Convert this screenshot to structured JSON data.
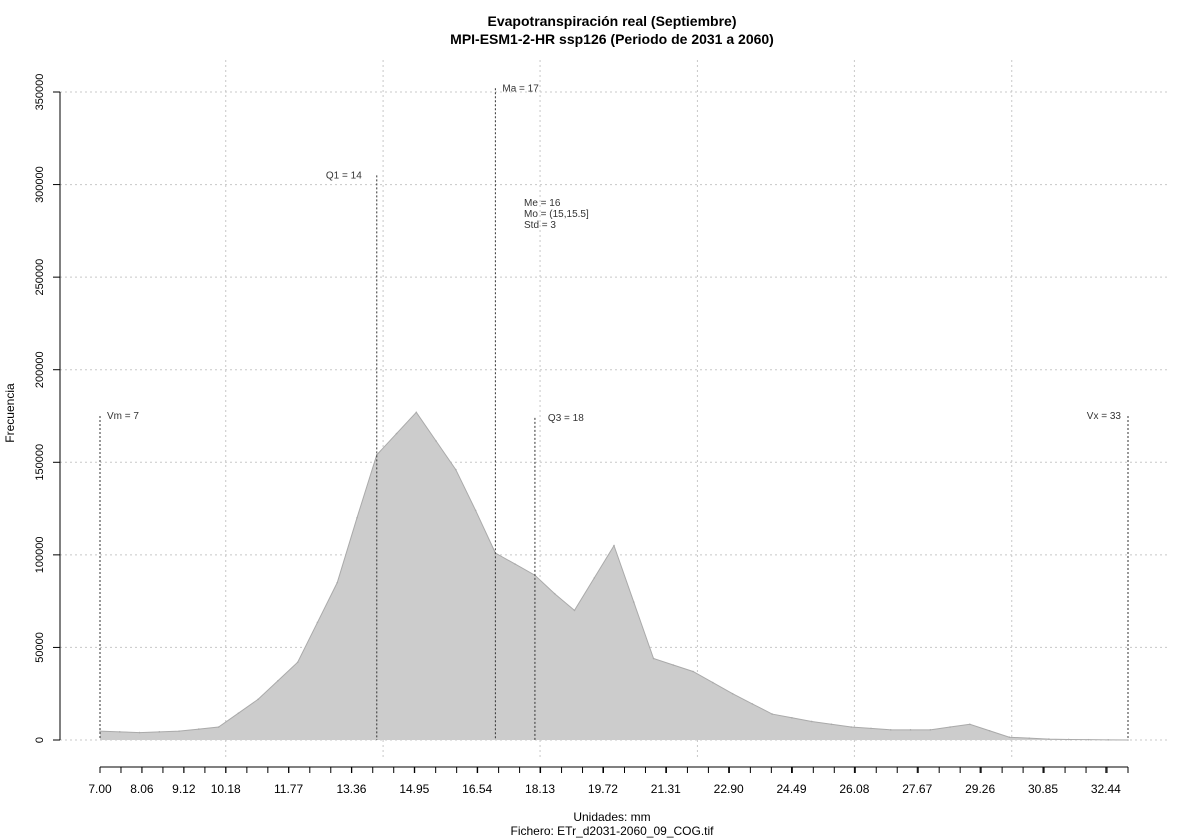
{
  "chart_data": {
    "type": "area",
    "title": "Evapotranspiración real (Septiembre)",
    "subtitle": "MPI-ESM1-2-HR ssp126 (Periodo de 2031 a 2060)",
    "xlabel": "Unidades: mm",
    "caption": "Fichero: ETr_d2031-2060_09_COG.tif",
    "ylabel": "Frecuencia",
    "xlim": [
      7.0,
      33.0
    ],
    "ylim": [
      0,
      350000
    ],
    "grid": true,
    "x_ticks": [
      "7.00",
      "8.06",
      "9.12",
      "10.18",
      "11.77",
      "13.36",
      "14.95",
      "16.54",
      "18.13",
      "19.72",
      "21.31",
      "22.90",
      "24.49",
      "26.08",
      "27.67",
      "29.26",
      "30.85",
      "32.44"
    ],
    "y_ticks": [
      "0",
      "50000",
      "100000",
      "150000",
      "200000",
      "250000",
      "300000",
      "350000"
    ],
    "x": [
      7.0,
      7.5,
      8.0,
      8.5,
      9.0,
      9.5,
      10.0,
      10.5,
      11.0,
      11.5,
      12.0,
      12.5,
      13.0,
      13.5,
      14.0,
      14.5,
      15.0,
      15.5,
      16.0,
      16.5,
      17.0,
      17.5,
      18.0,
      18.5,
      19.0,
      19.5,
      20.0,
      20.5,
      21.0,
      21.5,
      22.0,
      22.5,
      23.0,
      23.5,
      24.0,
      24.5,
      25.0,
      25.5,
      26.0,
      26.5,
      27.0,
      27.5,
      28.0,
      28.5,
      29.0,
      29.5,
      30.0,
      30.5,
      31.0,
      31.5,
      32.0,
      32.5,
      33.0
    ],
    "values": [
      4800,
      4400,
      4000,
      4400,
      4800,
      5900,
      7000,
      14500,
      22000,
      32000,
      42000,
      63500,
      85000,
      120000,
      154000,
      165500,
      177000,
      161500,
      146000,
      124000,
      101000,
      95000,
      89000,
      79000,
      70000,
      87500,
      105000,
      74500,
      44000,
      40500,
      37000,
      31000,
      25000,
      19500,
      14000,
      12000,
      10000,
      8500,
      7000,
      6250,
      5500,
      5500,
      5500,
      7000,
      8500,
      5000,
      1500,
      1000,
      500,
      300,
      200,
      100,
      0
    ],
    "annotations": {
      "vm": {
        "label": "Vm = 7",
        "x": 7.0,
        "top": 175000
      },
      "q1": {
        "label": "Q1 = 14",
        "x": 14.0,
        "top": 305000
      },
      "ma": {
        "label": "Ma = 17",
        "x": 17.0,
        "top": 352000
      },
      "q3": {
        "label": "Q3 = 18",
        "x": 18.0,
        "top": 174000
      },
      "vx": {
        "label": "Vx = 33",
        "x": 33.0,
        "top": 175000
      },
      "stats": [
        "Me = 16",
        "Mo = (15,15.5]",
        "Std = 3"
      ]
    },
    "colors": {
      "fill": "#cccccc",
      "stroke": "#aaaaaa",
      "grid": "#c8c8c8",
      "marker": "#333333"
    }
  }
}
